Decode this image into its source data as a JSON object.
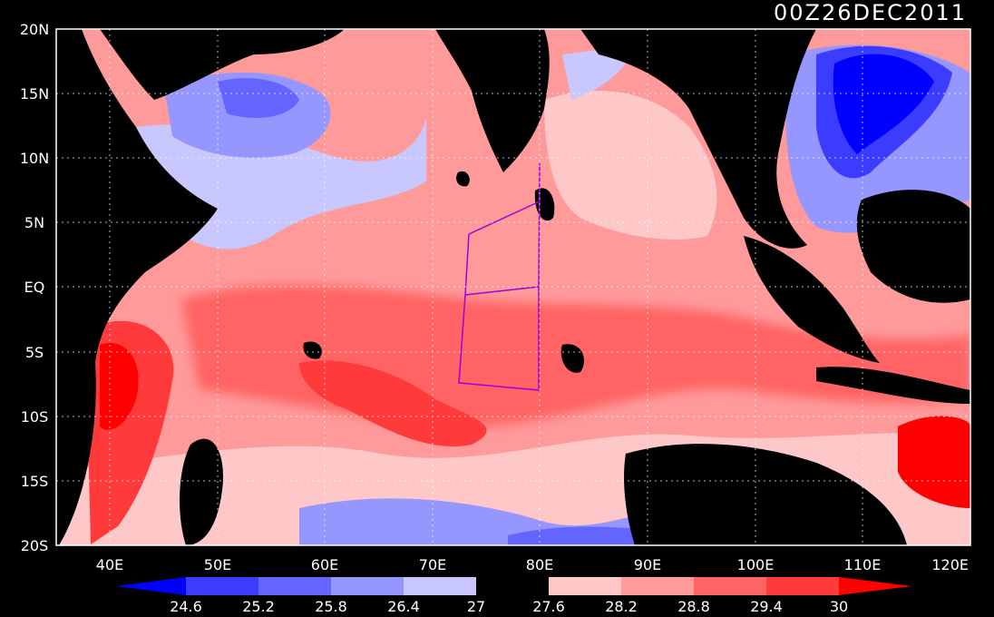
{
  "title": "00Z26DEC2011",
  "map": {
    "lat_labels": [
      "20N",
      "15N",
      "10N",
      "5N",
      "EQ",
      "5S",
      "10S",
      "15S",
      "20S"
    ],
    "lon_labels": [
      "40E",
      "50E",
      "60E",
      "70E",
      "80E",
      "90E",
      "100E",
      "110E",
      "120E"
    ],
    "lat_range": [
      -20,
      20
    ],
    "lon_range": [
      35,
      120
    ],
    "grid": "dotted",
    "land_color": "#000000",
    "region_outline_color": "#a000d8"
  },
  "colorbar": {
    "labels": [
      "24.6",
      "25.2",
      "25.8",
      "26.4",
      "27",
      "27.6",
      "28.2",
      "28.8",
      "29.4",
      "30"
    ],
    "colors": [
      "#0000ff",
      "#3c3cff",
      "#6464ff",
      "#9696ff",
      "#c8c8ff",
      "#000000",
      "#ffc8c8",
      "#ff9a9a",
      "#ff6464",
      "#ff3a3a",
      "#ff0000"
    ]
  }
}
